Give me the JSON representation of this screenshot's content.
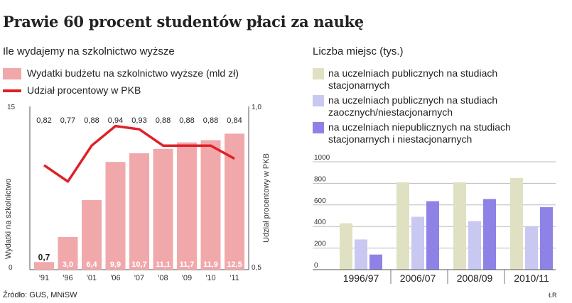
{
  "title": "Prawie 60 procent studentów płaci za naukę",
  "source": "Źródło: GUS, MNiSW",
  "signature": "ŁR",
  "colors": {
    "bar_budget": "#f1a8ab",
    "line_gdp": "#e02027",
    "stationary": "#e0e1c3",
    "extramural": "#c9c8f0",
    "private": "#8f82e6"
  },
  "chart_data": [
    {
      "type": "bar",
      "title": "Ile wydajemy na szkolnictwo wyższe",
      "categories": [
        "'91",
        "'96",
        "'01",
        "'06",
        "'07",
        "'08",
        "'09",
        "'10",
        "'11"
      ],
      "series": [
        {
          "name": "Wydatki budżetu na szkolnictwo wyższe (mld zł)",
          "type": "bar",
          "axis": "left",
          "values": [
            0.7,
            3.0,
            6.4,
            9.9,
            10.7,
            11.1,
            11.7,
            11.9,
            12.5
          ],
          "labels": [
            "0,7",
            "3,0",
            "6,4",
            "9,9",
            "10,7",
            "11,1",
            "11,7",
            "11,9",
            "12,5"
          ]
        },
        {
          "name": "Udział procentowy w PKB",
          "type": "line",
          "axis": "right",
          "values": [
            0.82,
            0.77,
            0.88,
            0.94,
            0.93,
            0.88,
            0.88,
            0.88,
            0.84
          ],
          "labels": [
            "0,82",
            "0,77",
            "0,88",
            "0,94",
            "0,93",
            "0,88",
            "0,88",
            "0,88",
            "0,84"
          ]
        }
      ],
      "ylabel": "Wydatki na szkolnictwo",
      "y2label": "Udział procentowy w PKB",
      "ylim": [
        0,
        15
      ],
      "y2lim": [
        0.5,
        1.0
      ],
      "yticks": [
        "0",
        "15"
      ],
      "y2ticks": [
        "0,5",
        "1,0"
      ]
    },
    {
      "type": "bar",
      "title": "Liczba miejsc (tys.)",
      "categories": [
        "1996/97",
        "2006/07",
        "2008/09",
        "2010/11"
      ],
      "series": [
        {
          "name": "na uczelniach publicznych na studiach stacjonarnych",
          "values": [
            430,
            810,
            810,
            850
          ]
        },
        {
          "name": "na uczelniach publicznych na studiach zaocznych/niestacjonarnych",
          "values": [
            280,
            490,
            450,
            400
          ]
        },
        {
          "name": "na uczelniach niepublicznych na studiach stacjonarnych i niestacjonarnych",
          "values": [
            140,
            635,
            655,
            580
          ]
        }
      ],
      "ylim": [
        0,
        1000
      ],
      "yticks": [
        "0",
        "200",
        "400",
        "600",
        "800",
        "1000"
      ],
      "grid": true
    }
  ]
}
